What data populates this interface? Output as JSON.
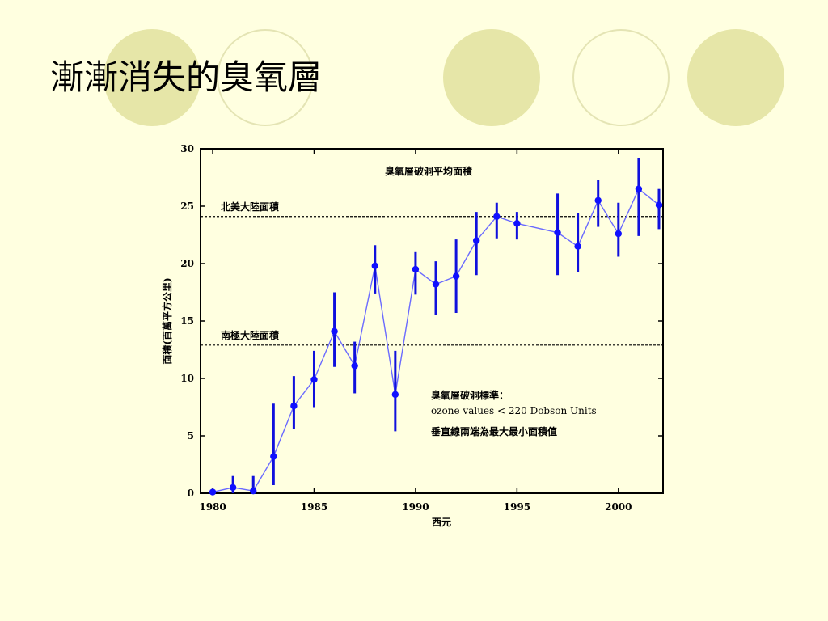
{
  "slide": {
    "title": "漸漸消失的臭氧層"
  },
  "chart_data": {
    "type": "line",
    "title": "臭氧層破洞平均面積",
    "xlabel": "西元",
    "ylabel": "面積(百萬平方公里)",
    "xlim": [
      1979.4,
      2002.2
    ],
    "ylim": [
      0,
      30
    ],
    "x_ticks": [
      1980,
      1985,
      1990,
      1995,
      2000
    ],
    "y_ticks": [
      0,
      5,
      10,
      15,
      20,
      25,
      30
    ],
    "grid": false,
    "line_color": "#6a6aff",
    "marker_color": "#1010ff",
    "errorbar_color": "#1010dd",
    "series": [
      {
        "x": [
          1980,
          1981,
          1982,
          1983,
          1984,
          1985,
          1986,
          1987,
          1988,
          1989,
          1990,
          1991,
          1992,
          1993,
          1994,
          1995,
          1997,
          1998,
          1999,
          2000,
          2001,
          2002
        ],
        "y": [
          0.1,
          0.5,
          0.2,
          3.2,
          7.6,
          9.9,
          14.1,
          11.1,
          19.8,
          8.6,
          19.5,
          18.2,
          18.9,
          22.0,
          24.1,
          23.5,
          22.7,
          21.5,
          25.5,
          22.6,
          26.5,
          25.1
        ],
        "y_min": [
          0.0,
          0.0,
          0.0,
          0.7,
          5.6,
          7.5,
          11.0,
          8.7,
          17.4,
          5.4,
          17.3,
          15.5,
          15.7,
          19.0,
          22.2,
          22.1,
          19.0,
          19.3,
          23.2,
          20.6,
          22.4,
          23.0
        ],
        "y_max": [
          0.3,
          1.5,
          1.5,
          7.8,
          10.2,
          12.4,
          17.5,
          13.2,
          21.6,
          12.4,
          21.0,
          20.2,
          22.1,
          24.5,
          25.3,
          24.5,
          26.1,
          24.4,
          27.3,
          25.3,
          29.2,
          26.5
        ]
      }
    ],
    "reference_lines": [
      {
        "label": "北美大陸面積",
        "y": 24.1
      },
      {
        "label": "南極大陸面積",
        "y": 12.9
      }
    ],
    "annotations": {
      "line1": "臭氧層破洞標準：",
      "line2": "ozone values < 220 Dobson Units",
      "line3": "垂直線兩端為最大最小面積值"
    }
  }
}
